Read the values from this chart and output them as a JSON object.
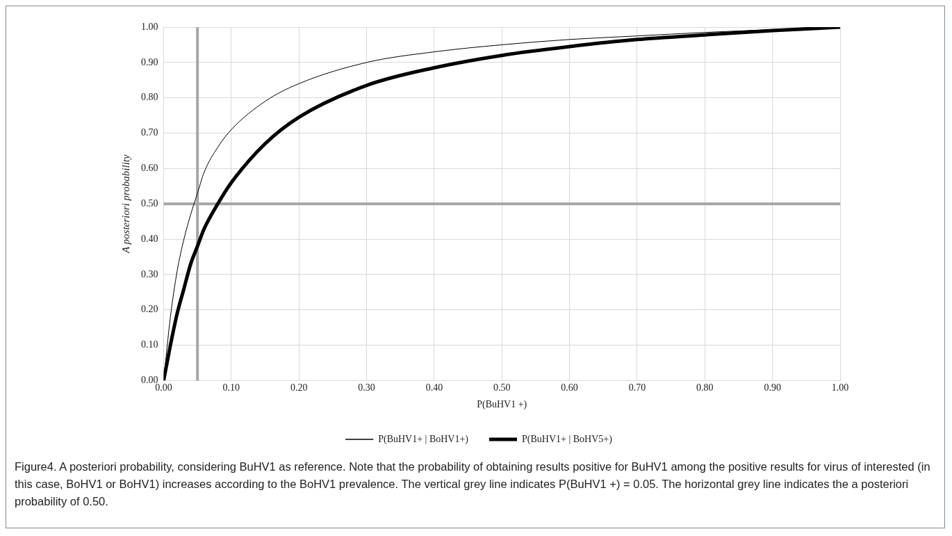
{
  "chart_data": {
    "type": "line",
    "xlabel": "P(BuHV1 +)",
    "ylabel": "A posteriori probability",
    "xlim": [
      0,
      1
    ],
    "ylim": [
      0,
      1
    ],
    "xticks": [
      {
        "value": 0,
        "label": "0.00"
      },
      {
        "value": 0.1,
        "label": "0.10"
      },
      {
        "value": 0.2,
        "label": "0.20"
      },
      {
        "value": 0.3,
        "label": "0.30"
      },
      {
        "value": 0.4,
        "label": "0.40"
      },
      {
        "value": 0.5,
        "label": "0.50"
      },
      {
        "value": 0.6,
        "label": "0.60"
      },
      {
        "value": 0.7,
        "label": "0.70"
      },
      {
        "value": 0.8,
        "label": "0.80"
      },
      {
        "value": 0.9,
        "label": "0.90"
      },
      {
        "value": 1,
        "label": "1.00"
      }
    ],
    "yticks": [
      {
        "value": 0,
        "label": "0.00"
      },
      {
        "value": 0.1,
        "label": "0.10"
      },
      {
        "value": 0.2,
        "label": "0.20"
      },
      {
        "value": 0.3,
        "label": "0.30"
      },
      {
        "value": 0.4,
        "label": "0.40"
      },
      {
        "value": 0.5,
        "label": "0.50"
      },
      {
        "value": 0.6,
        "label": "0.60"
      },
      {
        "value": 0.7,
        "label": "0.70"
      },
      {
        "value": 0.8,
        "label": "0.80"
      },
      {
        "value": 0.9,
        "label": "0.90"
      },
      {
        "value": 1,
        "label": "1.00"
      }
    ],
    "x": [
      0,
      0.01,
      0.02,
      0.03,
      0.04,
      0.05,
      0.06,
      0.08,
      0.1,
      0.15,
      0.2,
      0.3,
      0.4,
      0.5,
      0.6,
      0.7,
      0.8,
      0.9,
      1
    ],
    "series": [
      {
        "name": "P(BuHV1+ | BoHV1+)",
        "color": "#000000",
        "values": [
          0,
          0.18,
          0.31,
          0.4,
          0.47,
          0.53,
          0.59,
          0.66,
          0.71,
          0.79,
          0.84,
          0.9,
          0.93,
          0.95,
          0.965,
          0.975,
          0.985,
          0.993,
          1
        ]
      },
      {
        "name": "P(BuHV1+ | BoHV5+)",
        "color": "#000000",
        "values": [
          0,
          0.1,
          0.19,
          0.26,
          0.33,
          0.38,
          0.43,
          0.5,
          0.56,
          0.67,
          0.745,
          0.835,
          0.885,
          0.92,
          0.945,
          0.965,
          0.978,
          0.99,
          1
        ]
      }
    ],
    "ref_lines": [
      {
        "axis": "x",
        "value": 0.05,
        "color": "#a6a6a6"
      },
      {
        "axis": "y",
        "value": 0.5,
        "color": "#a6a6a6"
      }
    ],
    "grid": true,
    "legend": "bottom",
    "marker": "none",
    "line_style": "solid",
    "annotations": [
      "Figure4. A posteriori probability, considering BuHV1 as reference. Note that the probability of obtaining results positive for BuHV1 among the positive results for virus of interested (in this case, BoHV1 or BoHV1) increases according to the BoHV1 prevalence. The vertical grey line indicates P(BuHV1 +) = 0.05. The horizontal grey line indicates the a posteriori probability of 0.50."
    ]
  }
}
